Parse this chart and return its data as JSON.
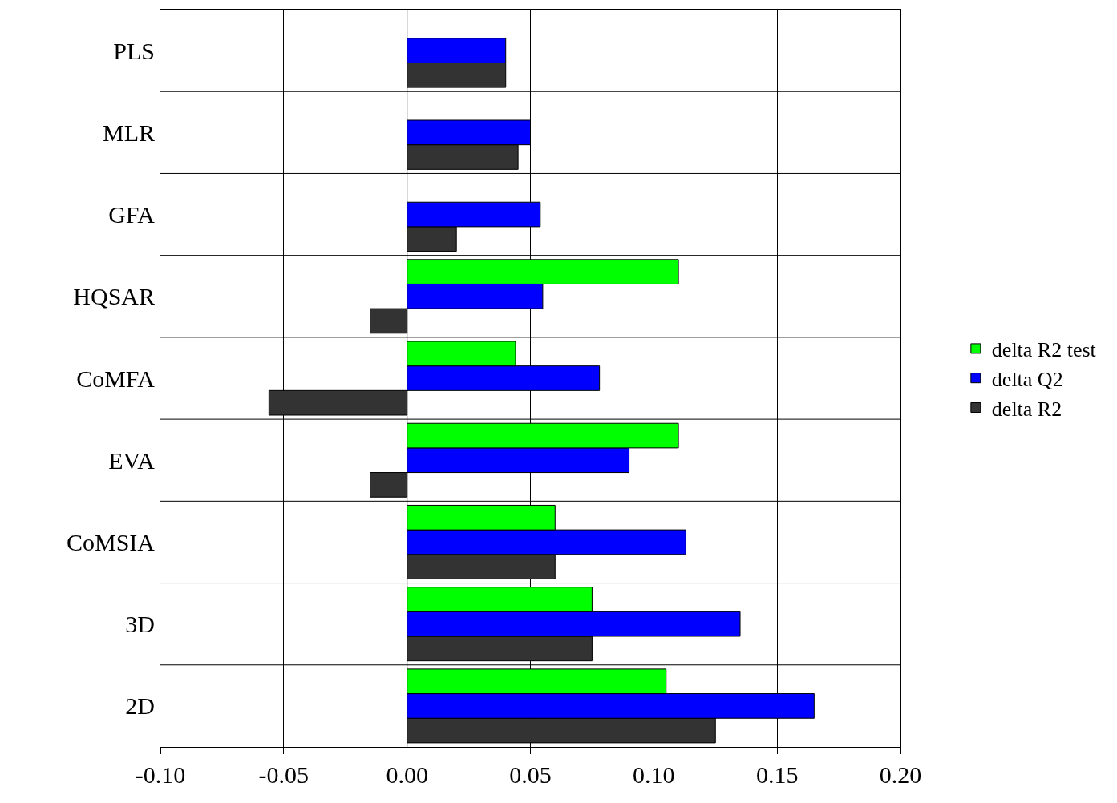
{
  "chart_data": {
    "type": "bar",
    "orientation": "horizontal",
    "categories": [
      "PLS",
      "MLR",
      "GFA",
      "HQSAR",
      "CoMFA",
      "EVA",
      "CoMSIA",
      "3D",
      "2D"
    ],
    "series": [
      {
        "name": "delta R2 test",
        "color": "#00ff00",
        "values": [
          null,
          null,
          null,
          0.11,
          0.044,
          0.11,
          0.06,
          0.075,
          0.105
        ]
      },
      {
        "name": "delta Q2",
        "color": "#0000ff",
        "values": [
          0.04,
          0.05,
          0.054,
          0.055,
          0.078,
          0.09,
          0.113,
          0.135,
          0.165
        ]
      },
      {
        "name": "delta R2",
        "color": "#333333",
        "values": [
          0.04,
          0.045,
          0.02,
          -0.015,
          -0.056,
          -0.015,
          0.06,
          0.075,
          0.125
        ]
      }
    ],
    "xlim": [
      -0.1,
      0.2
    ],
    "xticks": [
      {
        "value": -0.1,
        "label": "-0.10"
      },
      {
        "value": -0.05,
        "label": "-0.05"
      },
      {
        "value": 0,
        "label": "0.00"
      },
      {
        "value": 0.05,
        "label": "0.05"
      },
      {
        "value": 0.1,
        "label": "0.10"
      },
      {
        "value": 0.15,
        "label": "0.15"
      },
      {
        "value": 0.2,
        "label": "0.20"
      }
    ],
    "grid": true,
    "legend": "right"
  }
}
